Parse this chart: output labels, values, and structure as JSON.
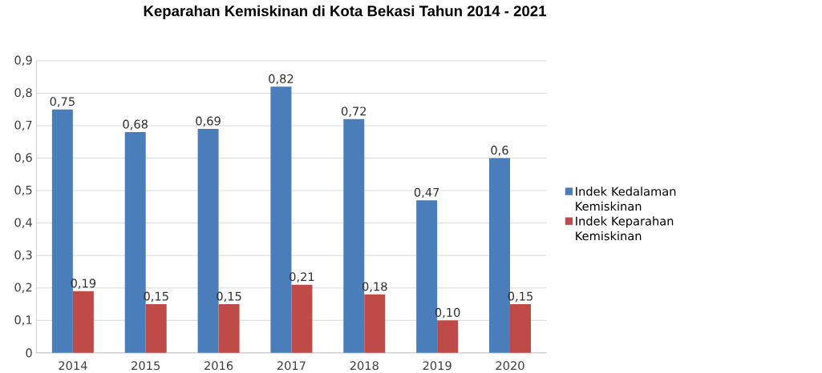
{
  "chart_data": {
    "type": "bar",
    "title": "Keparahan Kemiskinan di Kota Bekasi Tahun 2014 - 2021",
    "categories": [
      "2014",
      "2015",
      "2016",
      "2017",
      "2018",
      "2019",
      "2020"
    ],
    "series": [
      {
        "name": "Indek Kedalaman Kemiskinan",
        "color": "#4a7ebb",
        "values": [
          0.75,
          0.68,
          0.69,
          0.82,
          0.72,
          0.47,
          0.6
        ],
        "value_labels": [
          "0,75",
          "0,68",
          "0,69",
          "0,82",
          "0,72",
          "0,47",
          "0,6"
        ]
      },
      {
        "name": "Indek Keparahan Kemiskinan",
        "color": "#be4b48",
        "values": [
          0.19,
          0.15,
          0.15,
          0.21,
          0.18,
          0.1,
          0.15
        ],
        "value_labels": [
          "0,19",
          "0,15",
          "0,15",
          "0,21",
          "0,18",
          "0,10",
          "0,15"
        ]
      }
    ],
    "ylim": [
      0,
      0.9
    ],
    "yticks": [
      {
        "value": 0,
        "label": "0"
      },
      {
        "value": 0.1,
        "label": "0,1"
      },
      {
        "value": 0.2,
        "label": "0,2"
      },
      {
        "value": 0.3,
        "label": "0,3"
      },
      {
        "value": 0.4,
        "label": "0,4"
      },
      {
        "value": 0.5,
        "label": "0,5"
      },
      {
        "value": 0.6,
        "label": "0,6"
      },
      {
        "value": 0.7,
        "label": "0,7"
      },
      {
        "value": 0.8,
        "label": "0,8"
      },
      {
        "value": 0.9,
        "label": "0,9"
      }
    ],
    "grid": "y",
    "legend": "right"
  }
}
